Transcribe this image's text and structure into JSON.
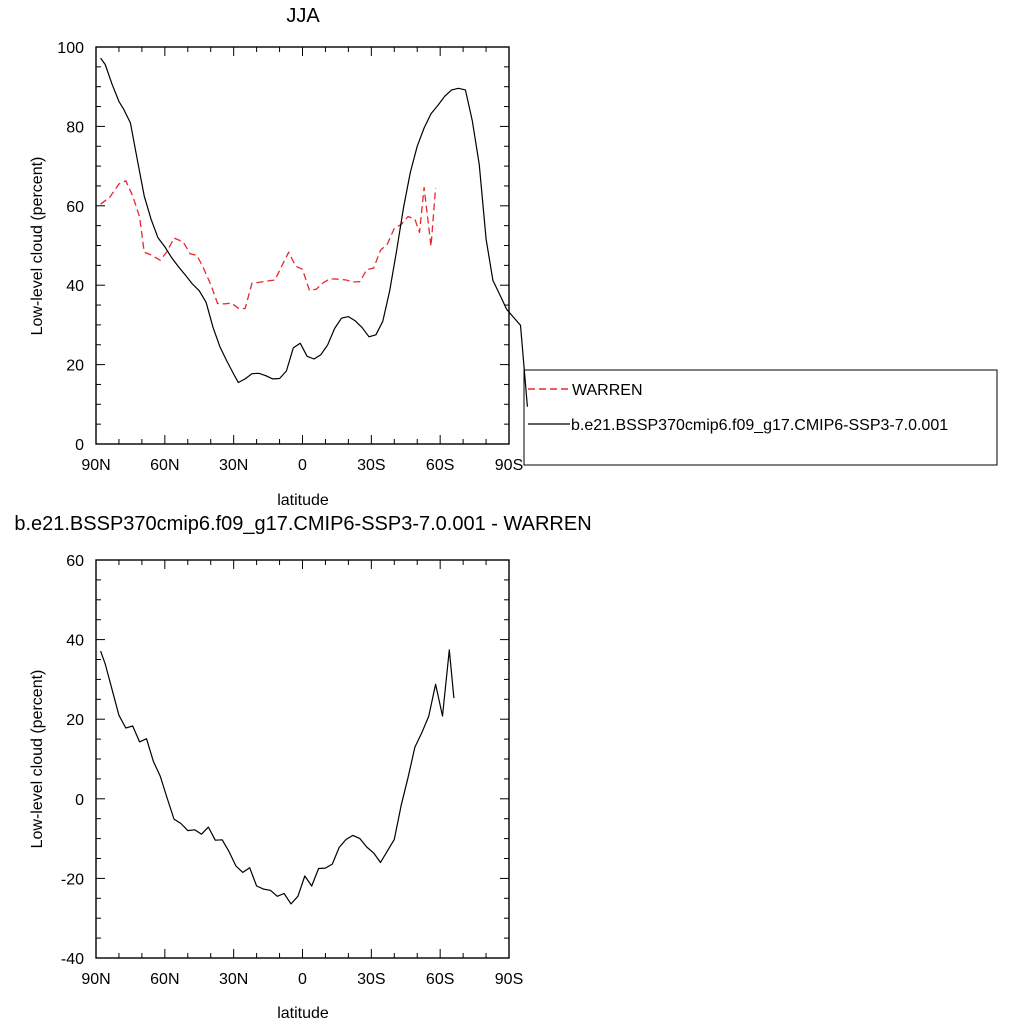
{
  "chart_data": [
    {
      "type": "line",
      "title": "JJA",
      "xlabel": "latitude",
      "ylabel": "Low-level cloud (percent)",
      "xlim": [
        90,
        -90
      ],
      "ylim": [
        0,
        100
      ],
      "xticks": [
        90,
        60,
        30,
        0,
        -30,
        -60,
        -90
      ],
      "xtick_labels": [
        "90N",
        "60N",
        "30N",
        "0",
        "30S",
        "60S",
        "90S"
      ],
      "yticks": [
        0,
        20,
        40,
        60,
        80,
        100
      ],
      "ytick_labels": [
        "0",
        "20",
        "40",
        "60",
        "80",
        "100"
      ],
      "grid": false,
      "legend": "right",
      "series": [
        {
          "name": "WARREN",
          "color": "#e8282e",
          "dash": "dashed",
          "points": [
            [
              88,
              60.4
            ],
            [
              84,
              62.2
            ],
            [
              80,
              65.5
            ],
            [
              77,
              66.3
            ],
            [
              74,
              62.5
            ],
            [
              71,
              57.2
            ],
            [
              69,
              48.3
            ],
            [
              66,
              47.6
            ],
            [
              62,
              46.3
            ],
            [
              59,
              48.5
            ],
            [
              56,
              51.9
            ],
            [
              52,
              50.9
            ],
            [
              49,
              47.9
            ],
            [
              46,
              47.5
            ],
            [
              43,
              44.1
            ],
            [
              40,
              40.2
            ],
            [
              37,
              35.4
            ],
            [
              34,
              35.3
            ],
            [
              31,
              35.5
            ],
            [
              28,
              34.2
            ],
            [
              25,
              34.1
            ],
            [
              22,
              40.5
            ],
            [
              19,
              40.7
            ],
            [
              16,
              41.0
            ],
            [
              12,
              41.3
            ],
            [
              9,
              44.9
            ],
            [
              6,
              48.3
            ],
            [
              3,
              44.8
            ],
            [
              0,
              44.0
            ],
            [
              -3,
              38.7
            ],
            [
              -6,
              39.0
            ],
            [
              -9,
              40.6
            ],
            [
              -12,
              41.6
            ],
            [
              -16,
              41.5
            ],
            [
              -19,
              41.3
            ],
            [
              -22,
              40.8
            ],
            [
              -25,
              40.9
            ],
            [
              -28,
              43.9
            ],
            [
              -31,
              44.3
            ],
            [
              -34,
              48.8
            ],
            [
              -37,
              50.4
            ],
            [
              -40,
              54.3
            ],
            [
              -43,
              55.3
            ],
            [
              -46,
              57.3
            ],
            [
              -49,
              56.6
            ],
            [
              -51,
              53.3
            ],
            [
              -53,
              64.6
            ],
            [
              -56,
              49.8
            ],
            [
              -58,
              64.5
            ]
          ]
        },
        {
          "name": "b.e21.BSSP370cmip6.f09_g17.CMIP6-SSP3-7.0.001",
          "color": "#000000",
          "dash": "solid",
          "points": [
            [
              88,
              97.2
            ],
            [
              86,
              95.6
            ],
            [
              83,
              90.6
            ],
            [
              80,
              86.3
            ],
            [
              78,
              84.4
            ],
            [
              75,
              80.9
            ],
            [
              72,
              71.6
            ],
            [
              69,
              62.5
            ],
            [
              66,
              56.6
            ],
            [
              63,
              52.0
            ],
            [
              60,
              49.7
            ],
            [
              57,
              46.9
            ],
            [
              54,
              44.6
            ],
            [
              51,
              42.5
            ],
            [
              48,
              40.3
            ],
            [
              45,
              38.6
            ],
            [
              42,
              35.7
            ],
            [
              39,
              29.4
            ],
            [
              36,
              24.5
            ],
            [
              33,
              20.9
            ],
            [
              30,
              17.6
            ],
            [
              28,
              15.5
            ],
            [
              25,
              16.4
            ],
            [
              22,
              17.7
            ],
            [
              19,
              17.8
            ],
            [
              16,
              17.2
            ],
            [
              13,
              16.4
            ],
            [
              10,
              16.5
            ],
            [
              7,
              18.4
            ],
            [
              4,
              24.2
            ],
            [
              1,
              25.4
            ],
            [
              -2,
              22.1
            ],
            [
              -5,
              21.4
            ],
            [
              -8,
              22.5
            ],
            [
              -11,
              25.0
            ],
            [
              -14,
              29.1
            ],
            [
              -17,
              31.7
            ],
            [
              -20,
              32.1
            ],
            [
              -23,
              31.0
            ],
            [
              -26,
              29.3
            ],
            [
              -29,
              27.0
            ],
            [
              -32,
              27.5
            ],
            [
              -35,
              30.9
            ],
            [
              -38,
              38.6
            ],
            [
              -41,
              48.7
            ],
            [
              -44,
              59.5
            ],
            [
              -47,
              68.4
            ],
            [
              -50,
              75.0
            ],
            [
              -53,
              79.6
            ],
            [
              -56,
              83.2
            ],
            [
              -59,
              85.3
            ],
            [
              -62,
              87.6
            ],
            [
              -65,
              89.2
            ],
            [
              -68,
              89.6
            ],
            [
              -71,
              89.2
            ],
            [
              -74,
              81.4
            ],
            [
              -77,
              70.5
            ],
            [
              -80,
              51.6
            ],
            [
              -83,
              41.2
            ],
            [
              -86,
              37.6
            ],
            [
              -89,
              33.9
            ],
            [
              -92,
              31.9
            ],
            [
              -95,
              29.9
            ],
            [
              -98,
              9.4
            ]
          ]
        }
      ]
    },
    {
      "type": "line",
      "title": "b.e21.BSSP370cmip6.f09_g17.CMIP6-SSP3-7.0.001 - WARREN",
      "xlabel": "latitude",
      "ylabel": "Low-level cloud (percent)",
      "xlim": [
        90,
        -90
      ],
      "ylim": [
        -40,
        60
      ],
      "xticks": [
        90,
        60,
        30,
        0,
        -30,
        -60,
        -90
      ],
      "xtick_labels": [
        "90N",
        "60N",
        "30N",
        "0",
        "30S",
        "60S",
        "90S"
      ],
      "yticks": [
        -40,
        -20,
        0,
        20,
        40,
        60
      ],
      "ytick_labels": [
        "-40",
        "-20",
        "0",
        "20",
        "40",
        "60"
      ],
      "grid": false,
      "series": [
        {
          "color": "#000000",
          "dash": "solid",
          "points": [
            [
              88,
              37.1
            ],
            [
              86,
              33.9
            ],
            [
              83,
              27.4
            ],
            [
              80,
              21.0
            ],
            [
              77,
              17.8
            ],
            [
              74,
              18.3
            ],
            [
              71,
              14.3
            ],
            [
              68,
              15.1
            ],
            [
              65,
              9.4
            ],
            [
              62,
              5.7
            ],
            [
              59,
              0.2
            ],
            [
              56,
              -5.1
            ],
            [
              53,
              -6.2
            ],
            [
              50,
              -8.0
            ],
            [
              47,
              -7.8
            ],
            [
              44,
              -8.9
            ],
            [
              41,
              -7.1
            ],
            [
              38,
              -10.4
            ],
            [
              35,
              -10.3
            ],
            [
              32,
              -13.3
            ],
            [
              29,
              -16.9
            ],
            [
              26,
              -18.5
            ],
            [
              23,
              -17.3
            ],
            [
              20,
              -21.9
            ],
            [
              17,
              -22.7
            ],
            [
              14,
              -23.0
            ],
            [
              11,
              -24.5
            ],
            [
              8,
              -23.8
            ],
            [
              5,
              -26.4
            ],
            [
              2,
              -24.5
            ],
            [
              -1,
              -19.4
            ],
            [
              -4,
              -21.9
            ],
            [
              -7,
              -17.5
            ],
            [
              -10,
              -17.4
            ],
            [
              -13,
              -16.4
            ],
            [
              -16,
              -12.2
            ],
            [
              -19,
              -10.2
            ],
            [
              -22,
              -9.2
            ],
            [
              -25,
              -10.0
            ],
            [
              -28,
              -12.1
            ],
            [
              -31,
              -13.6
            ],
            [
              -34,
              -16.0
            ],
            [
              -37,
              -13.1
            ],
            [
              -40,
              -10.2
            ],
            [
              -43,
              -1.6
            ],
            [
              -46,
              5.3
            ],
            [
              -49,
              13.0
            ],
            [
              -52,
              16.6
            ],
            [
              -55,
              20.7
            ],
            [
              -58,
              28.8
            ],
            [
              -61,
              20.8
            ],
            [
              -64,
              37.4
            ],
            [
              -66,
              25.3
            ]
          ]
        }
      ]
    }
  ]
}
